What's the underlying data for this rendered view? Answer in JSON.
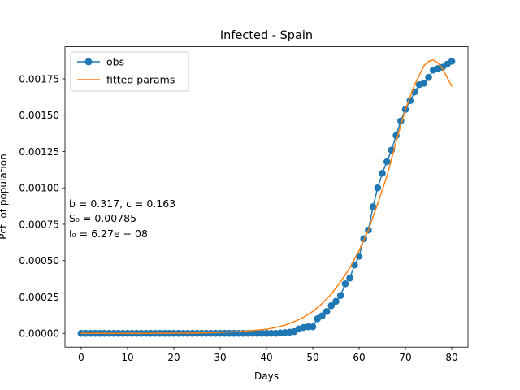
{
  "chart_data": {
    "type": "line",
    "title": "Infected - Spain",
    "xlabel": "Days",
    "ylabel": "Pct. of population",
    "xlim": [
      -3.5,
      83.5
    ],
    "ylim": [
      -9.5e-05,
      0.00197
    ],
    "xticks": [
      0,
      10,
      20,
      30,
      40,
      50,
      60,
      70,
      80
    ],
    "xtick_labels": [
      "0",
      "10",
      "20",
      "30",
      "40",
      "50",
      "60",
      "70",
      "80"
    ],
    "yticks": [
      0,
      0.00025,
      0.0005,
      0.00075,
      0.001,
      0.00125,
      0.0015,
      0.00175
    ],
    "ytick_labels": [
      "0.00000",
      "0.00025",
      "0.00050",
      "0.00075",
      "0.00100",
      "0.00125",
      "0.00150",
      "0.00175"
    ],
    "grid": false,
    "legend_position": "top-left",
    "series": [
      {
        "name": "obs",
        "style": "line-with-markers",
        "color": "#1f77b4",
        "x": [
          0,
          1,
          2,
          3,
          4,
          5,
          6,
          7,
          8,
          9,
          10,
          11,
          12,
          13,
          14,
          15,
          16,
          17,
          18,
          19,
          20,
          21,
          22,
          23,
          24,
          25,
          26,
          27,
          28,
          29,
          30,
          31,
          32,
          33,
          34,
          35,
          36,
          37,
          38,
          39,
          40,
          41,
          42,
          43,
          44,
          45,
          46,
          47,
          48,
          49,
          50,
          51,
          52,
          53,
          54,
          55,
          56,
          57,
          58,
          59,
          60,
          61,
          62,
          63,
          64,
          65,
          66,
          67,
          68,
          69,
          70,
          71,
          72,
          73,
          74,
          75,
          76,
          77,
          78,
          79,
          80
        ],
        "y": [
          0,
          0,
          0,
          0,
          0,
          0,
          0,
          0,
          0,
          0,
          0,
          0,
          0,
          0,
          0,
          0,
          0,
          0,
          0,
          0,
          0,
          0,
          0,
          0,
          0,
          0,
          0,
          0,
          0,
          0,
          0,
          0,
          0,
          0,
          0,
          0,
          0,
          0,
          0,
          0,
          0,
          0,
          0,
          2e-06,
          5e-06,
          8e-06,
          1.2e-05,
          3e-05,
          4e-05,
          4.5e-05,
          4.5e-05,
          0.0001,
          0.00012,
          0.00015,
          0.00019,
          0.00022,
          0.00026,
          0.00034,
          0.00038,
          0.00047,
          0.00053,
          0.00065,
          0.00071,
          0.00087,
          0.001,
          0.0011,
          0.00118,
          0.00126,
          0.00136,
          0.00146,
          0.00154,
          0.0016,
          0.00166,
          0.00171,
          0.00172,
          0.00176,
          0.00181,
          0.00182,
          0.00183,
          0.00185,
          0.00187
        ]
      },
      {
        "name": "fitted params",
        "style": "line",
        "color": "#ff7f0e",
        "x": [
          0,
          5,
          10,
          15,
          20,
          25,
          30,
          35,
          40,
          42,
          44,
          46,
          48,
          50,
          52,
          54,
          56,
          58,
          60,
          62,
          64,
          66,
          68,
          70,
          72,
          74,
          75,
          76,
          77,
          78,
          79,
          80
        ],
        "y": [
          0,
          0,
          0,
          0,
          5e-07,
          2e-06,
          6e-06,
          1.4e-05,
          2.8e-05,
          4e-05,
          5.6e-05,
          8e-05,
          0.00011,
          0.00015,
          0.000205,
          0.00027,
          0.000355,
          0.00045,
          0.00057,
          0.00071,
          0.00089,
          0.00108,
          0.00132,
          0.00154,
          0.00171,
          0.00184,
          0.00187,
          0.00188,
          0.00186,
          0.00182,
          0.00176,
          0.0017
        ]
      }
    ],
    "annotations": [
      "b = 0.317,  c = 0.163",
      "S₀ = 0.00785",
      "I₀ = 6.27e − 08"
    ]
  }
}
